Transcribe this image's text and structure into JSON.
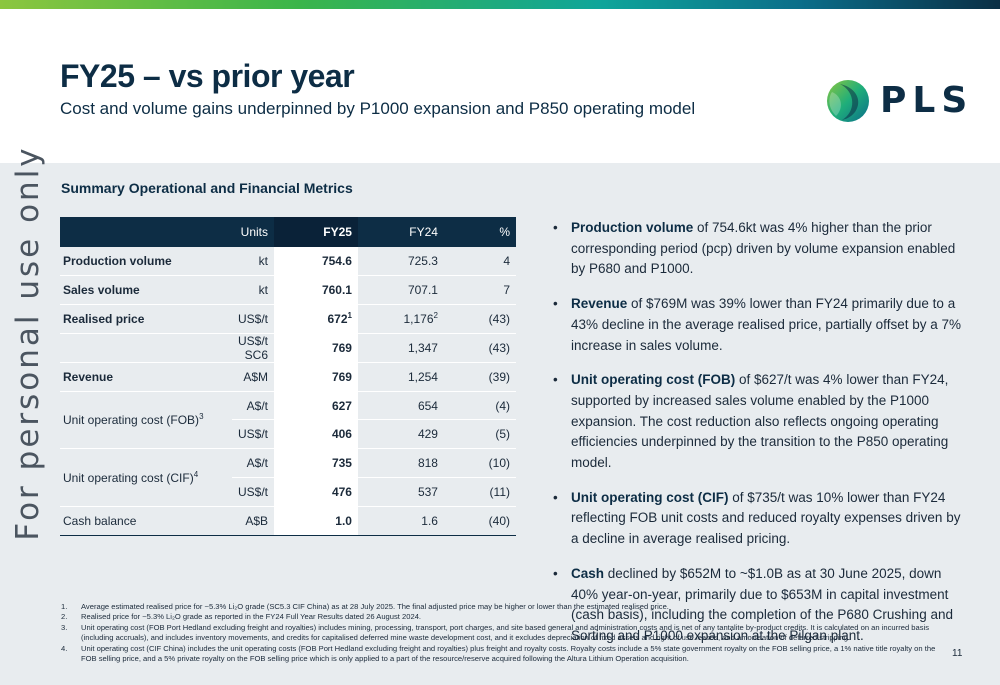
{
  "header": {
    "title": "FY25 – vs prior year",
    "subtitle": "Cost and volume gains underpinned by P1000 expansion and P850 operating model",
    "logo_text": "PLS"
  },
  "watermark": "For personal use only",
  "section_title": "Summary Operational and Financial Metrics",
  "table": {
    "headers": {
      "metric": "",
      "units": "Units",
      "fy25": "FY25",
      "fy24": "FY24",
      "pct": "%"
    },
    "rows": [
      {
        "metric": "Production volume",
        "units": "kt",
        "fy25": "754.6",
        "fy24": "725.3",
        "pct": "4"
      },
      {
        "metric": "Sales volume",
        "units": "kt",
        "fy25": "760.1",
        "fy24": "707.1",
        "pct": "7"
      },
      {
        "metric": "Realised price",
        "units": "US$/t",
        "fy25": "672",
        "fy25_sup": "1",
        "fy24": "1,176",
        "fy24_sup": "2",
        "pct": "(43)"
      },
      {
        "metric": "",
        "units": "US$/t SC6",
        "fy25": "769",
        "fy24": "1,347",
        "pct": "(43)"
      },
      {
        "metric": "Revenue",
        "units": "A$M",
        "fy25": "769",
        "fy24": "1,254",
        "pct": "(39)"
      },
      {
        "metric": "Unit operating cost (FOB)",
        "metric_sup": "3",
        "units": "A$/t",
        "fy25": "627",
        "fy24": "654",
        "pct": "(4)"
      },
      {
        "metric": "",
        "units": "US$/t",
        "fy25": "406",
        "fy24": "429",
        "pct": "(5)"
      },
      {
        "metric": "Unit operating cost (CIF)",
        "metric_sup": "4",
        "units": "A$/t",
        "fy25": "735",
        "fy24": "818",
        "pct": "(10)"
      },
      {
        "metric": "",
        "units": "US$/t",
        "fy25": "476",
        "fy24": "537",
        "pct": "(11)"
      },
      {
        "metric": "Cash balance",
        "units": "A$B",
        "fy25": "1.0",
        "fy24": "1.6",
        "pct": "(40)"
      }
    ]
  },
  "bullets": [
    {
      "bold": "Production volume",
      "text": " of 754.6kt was 4% higher than the prior corresponding period (pcp) driven by volume expansion enabled by P680 and P1000."
    },
    {
      "bold": "Revenue",
      "text": " of $769M was 39% lower than FY24 primarily due to a 43% decline in the average realised price, partially offset by a 7% increase in sales volume."
    },
    {
      "bold": "Unit operating cost (FOB)",
      "text": " of $627/t was 4% lower than FY24, supported by increased sales volume enabled by the P1000 expansion. The cost reduction also reflects ongoing operating efficiencies underpinned by the transition to the P850 operating model."
    },
    {
      "bold": "Unit operating cost (CIF)",
      "text": " of $735/t was 10% lower than FY24 reflecting FOB unit costs and reduced royalty expenses driven by a decline in average realised pricing."
    },
    {
      "bold": "Cash",
      "text": " declined by $652M to ~$1.0B as at 30 June 2025, down 40% year-on-year, primarily due to $653M in capital investment (cash basis), including the completion of the P680 Crushing and Sorting and P1000 expansion at the Pilgan plant."
    }
  ],
  "footnotes": [
    {
      "num": "1.",
      "text": "Average estimated realised price for ~5.3% Li₂O grade (SC5.3 CIF China) as at 28 July 2025. The final adjusted price may be higher or lower than the estimated realised price."
    },
    {
      "num": "2.",
      "text": "Realised price for ~5.3% Li₂O grade as reported in the FY24 Full Year Results dated 26 August 2024."
    },
    {
      "num": "3.",
      "text": "Unit operating cost (FOB Port Hedland excluding freight and royalties) includes mining, processing, transport, port charges, and site based general and administration costs and is net of any tantalite by-product credits. It is calculated on an incurred basis (including accruals), and includes inventory movements, and credits for capitalised deferred mine waste development cost, and it excludes depreciation of fixed assets and right of use leases, and amortisation of deferred stripping."
    },
    {
      "num": "4.",
      "text": "Unit operating cost (CIF China) includes the unit operating costs (FOB Port Hedland excluding freight and royalties) plus freight and royalty costs. Royalty costs include a 5% state government royalty on the FOB selling price, a 1% native title royalty on the FOB selling price, and a 5% private royalty on the FOB selling price which is only applied to a part of the resource/reserve acquired following the Altura Lithium Operation acquisition."
    }
  ],
  "page_number": "11"
}
